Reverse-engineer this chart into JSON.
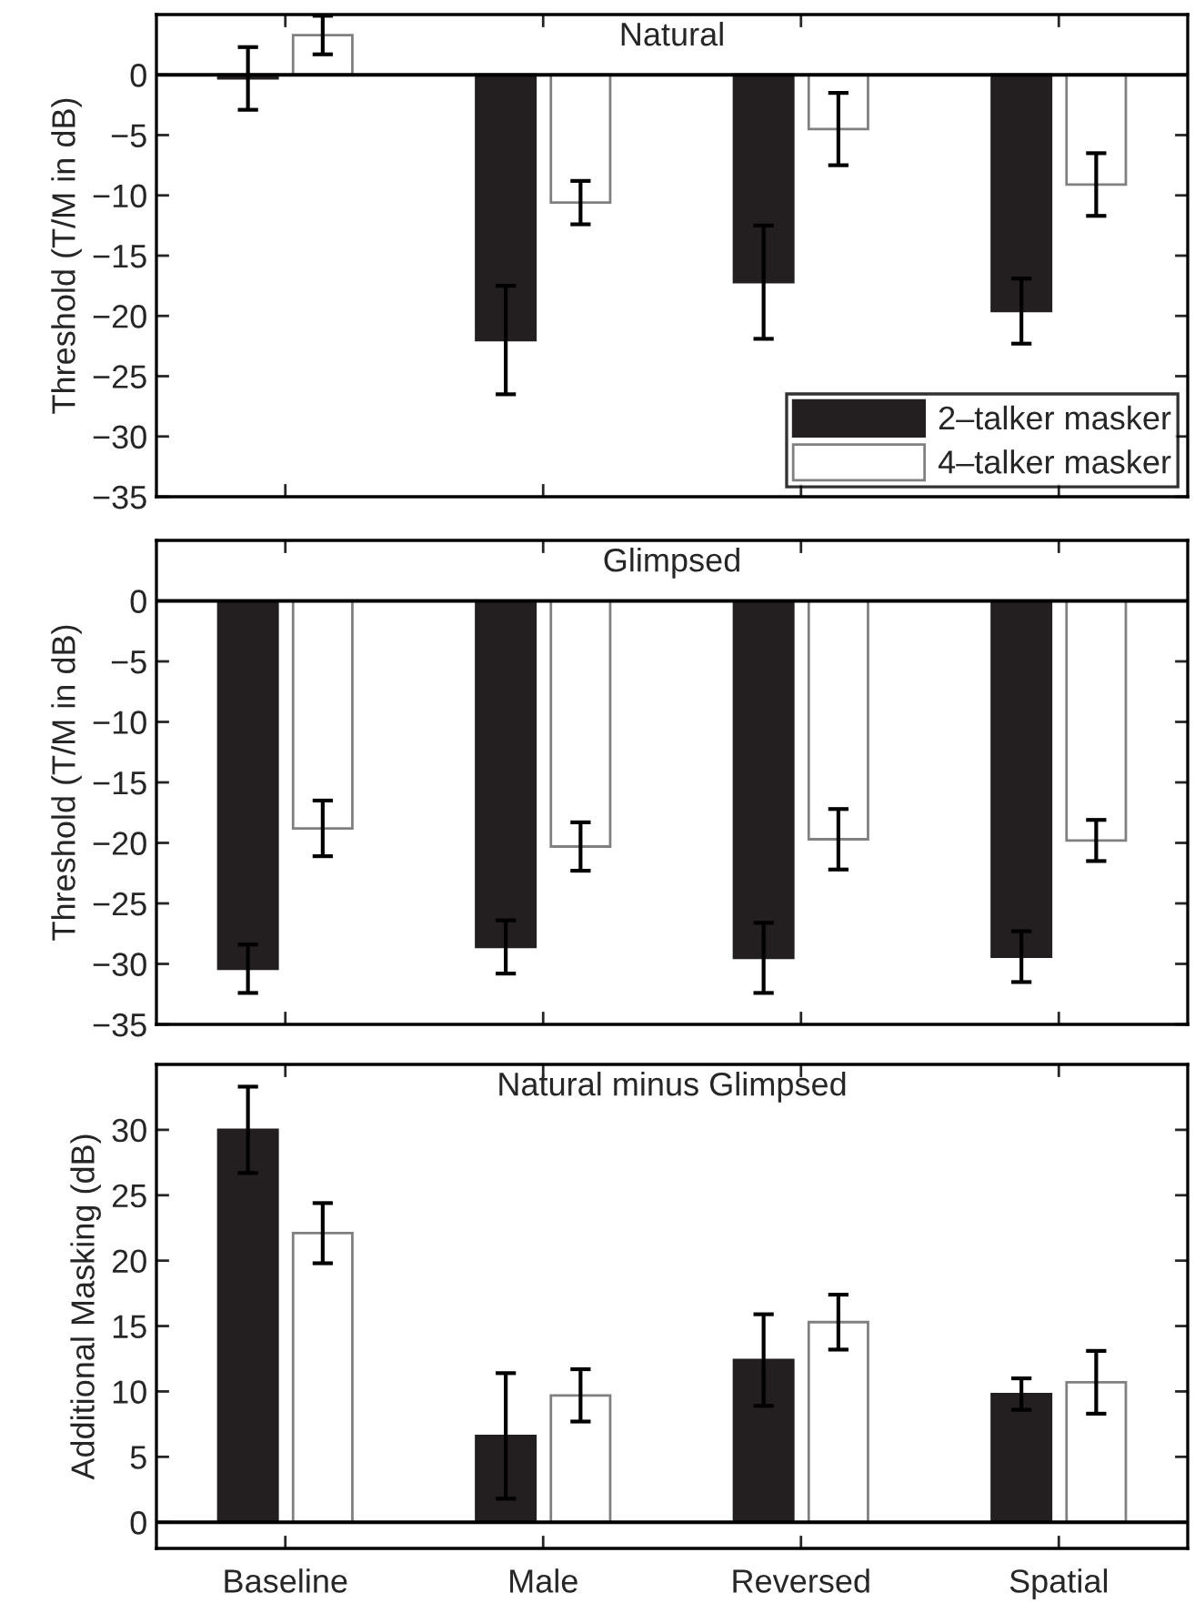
{
  "chart_data": [
    {
      "type": "bar",
      "title": "Natural",
      "ylabel": "Threshold (T/M in dB)",
      "categories": [
        null,
        null,
        null,
        null
      ],
      "series": [
        {
          "name": "2–talker masker",
          "color": "#231f20",
          "values": [
            -0.3,
            -22,
            -17.2,
            -19.6
          ],
          "errors": [
            2.6,
            4.5,
            4.7,
            2.7
          ]
        },
        {
          "name": "4–talker masker",
          "color": "#ffffff",
          "values": [
            3.3,
            -10.6,
            -4.5,
            -9.1
          ],
          "errors": [
            1.6,
            1.8,
            3.0,
            2.6
          ]
        }
      ],
      "ylim": [
        -35,
        5
      ],
      "yticks": [
        -35,
        -30,
        -25,
        -20,
        -15,
        -10,
        -5,
        0
      ],
      "ref_lines": [
        {
          "axis": "y",
          "value": 0
        }
      ],
      "legend": "bottom right",
      "tick_labels": "y",
      "grid": false
    },
    {
      "type": "bar",
      "title": "Glimpsed",
      "ylabel": "Threshold (T/M in dB)",
      "categories": [
        null,
        null,
        null,
        null
      ],
      "series": [
        {
          "color": "#231f20",
          "values": [
            -30.4,
            -28.6,
            -29.5,
            -29.4
          ],
          "errors": [
            2.0,
            2.2,
            2.9,
            2.1
          ]
        },
        {
          "color": "#ffffff",
          "values": [
            -18.8,
            -20.3,
            -19.7,
            -19.8
          ],
          "errors": [
            2.3,
            2.0,
            2.5,
            1.7
          ]
        }
      ],
      "ylim": [
        -35,
        5
      ],
      "yticks": [
        -35,
        -30,
        -25,
        -20,
        -15,
        -10,
        -5,
        0
      ],
      "ref_lines": [
        {
          "axis": "y",
          "value": 0
        }
      ],
      "legend": false,
      "tick_labels": "y",
      "grid": false
    },
    {
      "type": "bar",
      "title": "Natural minus Glimpsed",
      "ylabel": "Additional Masking (dB)",
      "categories": [
        "Baseline",
        "Male",
        "Reversed",
        "Spatial"
      ],
      "series": [
        {
          "color": "#231f20",
          "values": [
            30,
            6.6,
            12.4,
            9.8
          ],
          "errors": [
            3.3,
            4.8,
            3.5,
            1.2
          ]
        },
        {
          "color": "#ffffff",
          "values": [
            22.1,
            9.7,
            15.3,
            10.7
          ],
          "errors": [
            2.3,
            2.0,
            2.1,
            2.4
          ]
        }
      ],
      "ylim": [
        -2,
        35
      ],
      "yticks": [
        0,
        5,
        10,
        15,
        20,
        25,
        30
      ],
      "ref_lines": [
        {
          "axis": "y",
          "value": 0
        }
      ],
      "legend": false,
      "grid": false
    }
  ]
}
